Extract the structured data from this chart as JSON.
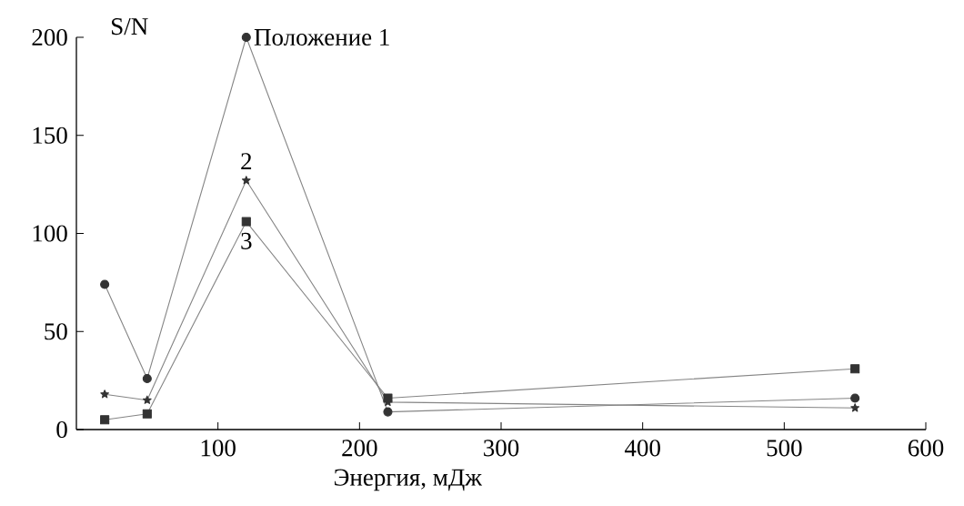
{
  "chart_data": {
    "type": "line",
    "xlabel": "Энергия, мДж",
    "ylabel": "S/N",
    "x": [
      20,
      50,
      120,
      220,
      550
    ],
    "series": [
      {
        "name": "Положение 1",
        "color": "#333333",
        "marker": "circle",
        "values": [
          74,
          26,
          200,
          9,
          16
        ]
      },
      {
        "name": "2",
        "color": "#333333",
        "marker": "star",
        "values": [
          18,
          15,
          127,
          14,
          11
        ]
      },
      {
        "name": "3",
        "color": "#333333",
        "marker": "square",
        "values": [
          5,
          8,
          106,
          16,
          31
        ]
      }
    ],
    "xlim": [
      0,
      600
    ],
    "ylim": [
      0,
      200
    ],
    "xticks": [
      100,
      200,
      300,
      400,
      500,
      600
    ],
    "yticks": [
      0,
      50,
      100,
      150,
      200
    ],
    "grid": false,
    "line_style": "solid"
  }
}
